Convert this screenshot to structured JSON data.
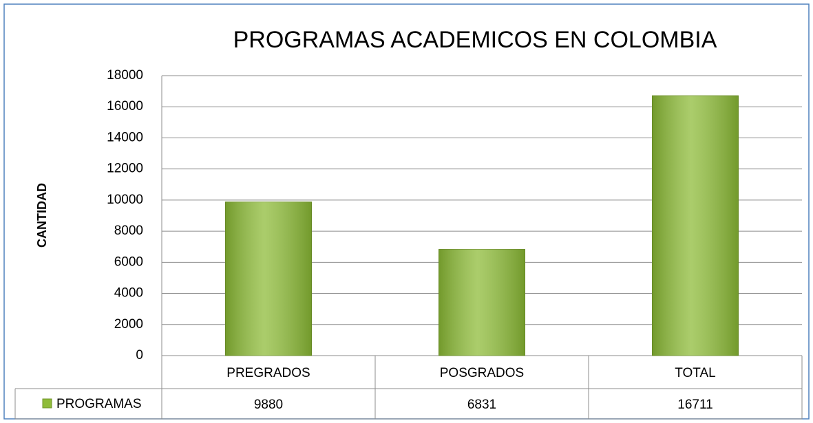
{
  "chart_data": {
    "type": "bar",
    "title": "PROGRAMAS ACADEMICOS EN COLOMBIA",
    "y_label": "CANTIDAD",
    "categories": [
      "PREGRADOS",
      "POSGRADOS",
      "TOTAL"
    ],
    "series": [
      {
        "name": "PROGRAMAS",
        "color": "#8fbc3a",
        "values": [
          9880,
          6831,
          16711
        ]
      }
    ],
    "ylim": [
      0,
      18000
    ],
    "yticks": [
      0,
      2000,
      4000,
      6000,
      8000,
      10000,
      12000,
      14000,
      16000,
      18000
    ],
    "grid": true,
    "legend": "data-table"
  }
}
